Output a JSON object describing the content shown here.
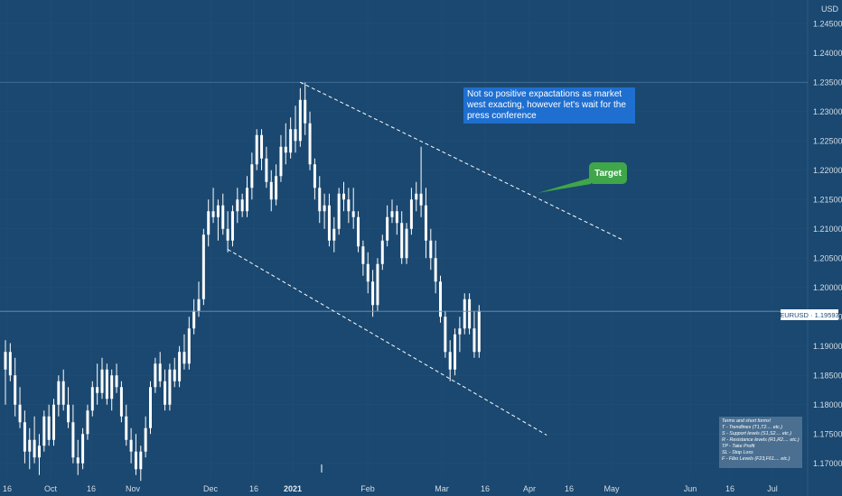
{
  "chart_data": {
    "type": "candlestick",
    "symbol": "EURUSD",
    "last_price": "1.19593",
    "currency_label": "USD",
    "ylim": [
      1.1675,
      1.2475
    ],
    "y_ticks": [
      "1.17000",
      "1.17500",
      "1.18000",
      "1.18500",
      "1.19000",
      "1.19500",
      "1.20000",
      "1.20500",
      "1.21000",
      "1.21500",
      "1.22000",
      "1.22500",
      "1.23000",
      "1.23500",
      "1.24000",
      "1.24500"
    ],
    "x_ticks": [
      {
        "label": "16",
        "bold": false
      },
      {
        "label": "Oct",
        "bold": false
      },
      {
        "label": "16",
        "bold": false
      },
      {
        "label": "Nov",
        "bold": false
      },
      {
        "label": "Dec",
        "bold": false
      },
      {
        "label": "16",
        "bold": false
      },
      {
        "label": "2021",
        "bold": true
      },
      {
        "label": "Feb",
        "bold": false
      },
      {
        "label": "Mar",
        "bold": false
      },
      {
        "label": "16",
        "bold": false
      },
      {
        "label": "Apr",
        "bold": false
      },
      {
        "label": "16",
        "bold": false
      },
      {
        "label": "May",
        "bold": false
      },
      {
        "label": "Jun",
        "bold": false
      },
      {
        "label": "16",
        "bold": false
      },
      {
        "label": "Jul",
        "bold": false
      }
    ],
    "candles": [
      {
        "o": 1.186,
        "h": 1.191,
        "l": 1.18,
        "c": 1.189
      },
      {
        "o": 1.189,
        "h": 1.1905,
        "l": 1.184,
        "c": 1.185
      },
      {
        "o": 1.185,
        "h": 1.188,
        "l": 1.178,
        "c": 1.18
      },
      {
        "o": 1.18,
        "h": 1.183,
        "l": 1.176,
        "c": 1.177
      },
      {
        "o": 1.177,
        "h": 1.179,
        "l": 1.17,
        "c": 1.172
      },
      {
        "o": 1.172,
        "h": 1.176,
        "l": 1.169,
        "c": 1.174
      },
      {
        "o": 1.174,
        "h": 1.178,
        "l": 1.17,
        "c": 1.171
      },
      {
        "o": 1.171,
        "h": 1.175,
        "l": 1.168,
        "c": 1.173
      },
      {
        "o": 1.173,
        "h": 1.179,
        "l": 1.172,
        "c": 1.178
      },
      {
        "o": 1.178,
        "h": 1.18,
        "l": 1.173,
        "c": 1.174
      },
      {
        "o": 1.174,
        "h": 1.181,
        "l": 1.173,
        "c": 1.18
      },
      {
        "o": 1.18,
        "h": 1.185,
        "l": 1.178,
        "c": 1.184
      },
      {
        "o": 1.184,
        "h": 1.186,
        "l": 1.179,
        "c": 1.18
      },
      {
        "o": 1.18,
        "h": 1.183,
        "l": 1.176,
        "c": 1.177
      },
      {
        "o": 1.177,
        "h": 1.18,
        "l": 1.17,
        "c": 1.171
      },
      {
        "o": 1.171,
        "h": 1.174,
        "l": 1.168,
        "c": 1.17
      },
      {
        "o": 1.17,
        "h": 1.176,
        "l": 1.169,
        "c": 1.175
      },
      {
        "o": 1.175,
        "h": 1.18,
        "l": 1.174,
        "c": 1.179
      },
      {
        "o": 1.179,
        "h": 1.184,
        "l": 1.178,
        "c": 1.183
      },
      {
        "o": 1.183,
        "h": 1.187,
        "l": 1.18,
        "c": 1.182
      },
      {
        "o": 1.182,
        "h": 1.188,
        "l": 1.181,
        "c": 1.186
      },
      {
        "o": 1.186,
        "h": 1.187,
        "l": 1.18,
        "c": 1.181
      },
      {
        "o": 1.181,
        "h": 1.186,
        "l": 1.179,
        "c": 1.185
      },
      {
        "o": 1.185,
        "h": 1.187,
        "l": 1.182,
        "c": 1.183
      },
      {
        "o": 1.183,
        "h": 1.184,
        "l": 1.177,
        "c": 1.178
      },
      {
        "o": 1.178,
        "h": 1.18,
        "l": 1.173,
        "c": 1.174
      },
      {
        "o": 1.174,
        "h": 1.176,
        "l": 1.17,
        "c": 1.172
      },
      {
        "o": 1.172,
        "h": 1.175,
        "l": 1.168,
        "c": 1.169
      },
      {
        "o": 1.169,
        "h": 1.173,
        "l": 1.167,
        "c": 1.172
      },
      {
        "o": 1.172,
        "h": 1.178,
        "l": 1.171,
        "c": 1.176
      },
      {
        "o": 1.176,
        "h": 1.184,
        "l": 1.175,
        "c": 1.183
      },
      {
        "o": 1.183,
        "h": 1.188,
        "l": 1.182,
        "c": 1.187
      },
      {
        "o": 1.187,
        "h": 1.189,
        "l": 1.183,
        "c": 1.184
      },
      {
        "o": 1.184,
        "h": 1.186,
        "l": 1.179,
        "c": 1.18
      },
      {
        "o": 1.18,
        "h": 1.187,
        "l": 1.179,
        "c": 1.186
      },
      {
        "o": 1.186,
        "h": 1.188,
        "l": 1.183,
        "c": 1.184
      },
      {
        "o": 1.184,
        "h": 1.19,
        "l": 1.183,
        "c": 1.189
      },
      {
        "o": 1.189,
        "h": 1.192,
        "l": 1.186,
        "c": 1.187
      },
      {
        "o": 1.187,
        "h": 1.195,
        "l": 1.186,
        "c": 1.193
      },
      {
        "o": 1.193,
        "h": 1.198,
        "l": 1.192,
        "c": 1.196
      },
      {
        "o": 1.196,
        "h": 1.201,
        "l": 1.195,
        "c": 1.198
      },
      {
        "o": 1.198,
        "h": 1.21,
        "l": 1.197,
        "c": 1.209
      },
      {
        "o": 1.209,
        "h": 1.215,
        "l": 1.207,
        "c": 1.213
      },
      {
        "o": 1.213,
        "h": 1.217,
        "l": 1.211,
        "c": 1.212
      },
      {
        "o": 1.212,
        "h": 1.215,
        "l": 1.208,
        "c": 1.214
      },
      {
        "o": 1.214,
        "h": 1.216,
        "l": 1.209,
        "c": 1.21
      },
      {
        "o": 1.21,
        "h": 1.213,
        "l": 1.206,
        "c": 1.208
      },
      {
        "o": 1.208,
        "h": 1.214,
        "l": 1.207,
        "c": 1.213
      },
      {
        "o": 1.213,
        "h": 1.217,
        "l": 1.211,
        "c": 1.215
      },
      {
        "o": 1.215,
        "h": 1.216,
        "l": 1.212,
        "c": 1.213
      },
      {
        "o": 1.213,
        "h": 1.219,
        "l": 1.212,
        "c": 1.217
      },
      {
        "o": 1.217,
        "h": 1.223,
        "l": 1.215,
        "c": 1.221
      },
      {
        "o": 1.221,
        "h": 1.227,
        "l": 1.22,
        "c": 1.226
      },
      {
        "o": 1.226,
        "h": 1.227,
        "l": 1.22,
        "c": 1.222
      },
      {
        "o": 1.222,
        "h": 1.224,
        "l": 1.217,
        "c": 1.218
      },
      {
        "o": 1.218,
        "h": 1.22,
        "l": 1.213,
        "c": 1.215
      },
      {
        "o": 1.215,
        "h": 1.221,
        "l": 1.214,
        "c": 1.219
      },
      {
        "o": 1.219,
        "h": 1.226,
        "l": 1.218,
        "c": 1.224
      },
      {
        "o": 1.224,
        "h": 1.228,
        "l": 1.221,
        "c": 1.223
      },
      {
        "o": 1.223,
        "h": 1.229,
        "l": 1.222,
        "c": 1.227
      },
      {
        "o": 1.227,
        "h": 1.231,
        "l": 1.223,
        "c": 1.225
      },
      {
        "o": 1.225,
        "h": 1.234,
        "l": 1.224,
        "c": 1.232
      },
      {
        "o": 1.232,
        "h": 1.235,
        "l": 1.226,
        "c": 1.228
      },
      {
        "o": 1.228,
        "h": 1.23,
        "l": 1.22,
        "c": 1.221
      },
      {
        "o": 1.221,
        "h": 1.222,
        "l": 1.215,
        "c": 1.217
      },
      {
        "o": 1.217,
        "h": 1.219,
        "l": 1.211,
        "c": 1.213
      },
      {
        "o": 1.213,
        "h": 1.216,
        "l": 1.21,
        "c": 1.214
      },
      {
        "o": 1.214,
        "h": 1.216,
        "l": 1.207,
        "c": 1.208
      },
      {
        "o": 1.208,
        "h": 1.212,
        "l": 1.206,
        "c": 1.21
      },
      {
        "o": 1.21,
        "h": 1.217,
        "l": 1.209,
        "c": 1.216
      },
      {
        "o": 1.216,
        "h": 1.218,
        "l": 1.213,
        "c": 1.215
      },
      {
        "o": 1.215,
        "h": 1.217,
        "l": 1.211,
        "c": 1.213
      },
      {
        "o": 1.213,
        "h": 1.217,
        "l": 1.21,
        "c": 1.212
      },
      {
        "o": 1.212,
        "h": 1.213,
        "l": 1.206,
        "c": 1.207
      },
      {
        "o": 1.207,
        "h": 1.208,
        "l": 1.202,
        "c": 1.204
      },
      {
        "o": 1.204,
        "h": 1.206,
        "l": 1.199,
        "c": 1.201
      },
      {
        "o": 1.201,
        "h": 1.203,
        "l": 1.195,
        "c": 1.197
      },
      {
        "o": 1.197,
        "h": 1.205,
        "l": 1.196,
        "c": 1.204
      },
      {
        "o": 1.204,
        "h": 1.209,
        "l": 1.203,
        "c": 1.208
      },
      {
        "o": 1.208,
        "h": 1.214,
        "l": 1.207,
        "c": 1.212
      },
      {
        "o": 1.212,
        "h": 1.215,
        "l": 1.211,
        "c": 1.213
      },
      {
        "o": 1.213,
        "h": 1.214,
        "l": 1.209,
        "c": 1.211
      },
      {
        "o": 1.211,
        "h": 1.213,
        "l": 1.204,
        "c": 1.205
      },
      {
        "o": 1.205,
        "h": 1.211,
        "l": 1.204,
        "c": 1.21
      },
      {
        "o": 1.21,
        "h": 1.217,
        "l": 1.209,
        "c": 1.215
      },
      {
        "o": 1.215,
        "h": 1.218,
        "l": 1.213,
        "c": 1.216
      },
      {
        "o": 1.216,
        "h": 1.224,
        "l": 1.212,
        "c": 1.214
      },
      {
        "o": 1.214,
        "h": 1.217,
        "l": 1.205,
        "c": 1.208
      },
      {
        "o": 1.208,
        "h": 1.21,
        "l": 1.203,
        "c": 1.205
      },
      {
        "o": 1.205,
        "h": 1.208,
        "l": 1.199,
        "c": 1.201
      },
      {
        "o": 1.201,
        "h": 1.202,
        "l": 1.194,
        "c": 1.195
      },
      {
        "o": 1.195,
        "h": 1.196,
        "l": 1.188,
        "c": 1.189
      },
      {
        "o": 1.189,
        "h": 1.191,
        "l": 1.184,
        "c": 1.186
      },
      {
        "o": 1.186,
        "h": 1.193,
        "l": 1.185,
        "c": 1.192
      },
      {
        "o": 1.192,
        "h": 1.195,
        "l": 1.189,
        "c": 1.193
      },
      {
        "o": 1.193,
        "h": 1.199,
        "l": 1.192,
        "c": 1.198
      },
      {
        "o": 1.198,
        "h": 1.199,
        "l": 1.192,
        "c": 1.193
      },
      {
        "o": 1.193,
        "h": 1.196,
        "l": 1.188,
        "c": 1.189
      },
      {
        "o": 1.189,
        "h": 1.197,
        "l": 1.188,
        "c": 1.196
      }
    ],
    "trendlines": [
      {
        "name": "upper-channel-line",
        "p1": [
          61,
          1.235
        ],
        "p2": [
          128,
          1.208
        ]
      },
      {
        "name": "lower-channel-line",
        "p1": [
          46,
          1.2065
        ],
        "p2": [
          112,
          1.1748
        ]
      }
    ]
  },
  "annotations": {
    "note_text": "Not so positive expactations as market west exacting, however let's wait for the press conference",
    "target_label": "Target",
    "legend_lines": [
      "Terms and short forms!",
      "T - Trendlines (T1,T2.... etc.)",
      "S - Support levels (S1,S2.... etc.)",
      "R - Resistance levels (R1,R2.... etc.)",
      "TP - Take Profit",
      "SL - Stop Loss",
      "F - Fibo Levels (F23,F61.... etc.)"
    ]
  },
  "colors": {
    "background": "#1a4870",
    "candle": "#ffffff",
    "grid": "#2f5a80",
    "note_bg": "#1f6fd0",
    "target_bg": "#3fa64a",
    "legend_bg": "#4a6f91"
  }
}
